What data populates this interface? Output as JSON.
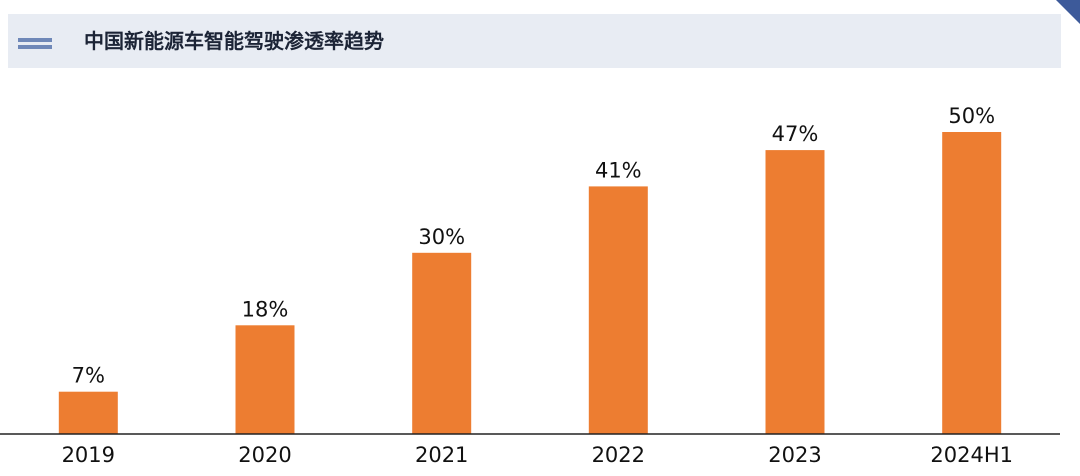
{
  "header": {
    "title": "中国新能源车智能驾驶渗透率趋势"
  },
  "chart_data": {
    "type": "bar",
    "title": "中国新能源车智能驾驶渗透率趋势",
    "xlabel": "",
    "ylabel": "",
    "categories": [
      "2019",
      "2020",
      "2021",
      "2022",
      "2023",
      "2024H1"
    ],
    "values": [
      7,
      18,
      30,
      41,
      47,
      50
    ],
    "data_labels": [
      "7%",
      "18%",
      "30%",
      "41%",
      "47%",
      "50%"
    ],
    "ylim": [
      0,
      60
    ],
    "grid": false,
    "legend": "none",
    "bar_color": "#ED7D31"
  },
  "colors": {
    "bar": "#ED7D31",
    "header_background": "#E8ECF3",
    "header_icon": "#6F88B8",
    "corner_flag": "#3D5A9A",
    "axis": "#222222"
  }
}
